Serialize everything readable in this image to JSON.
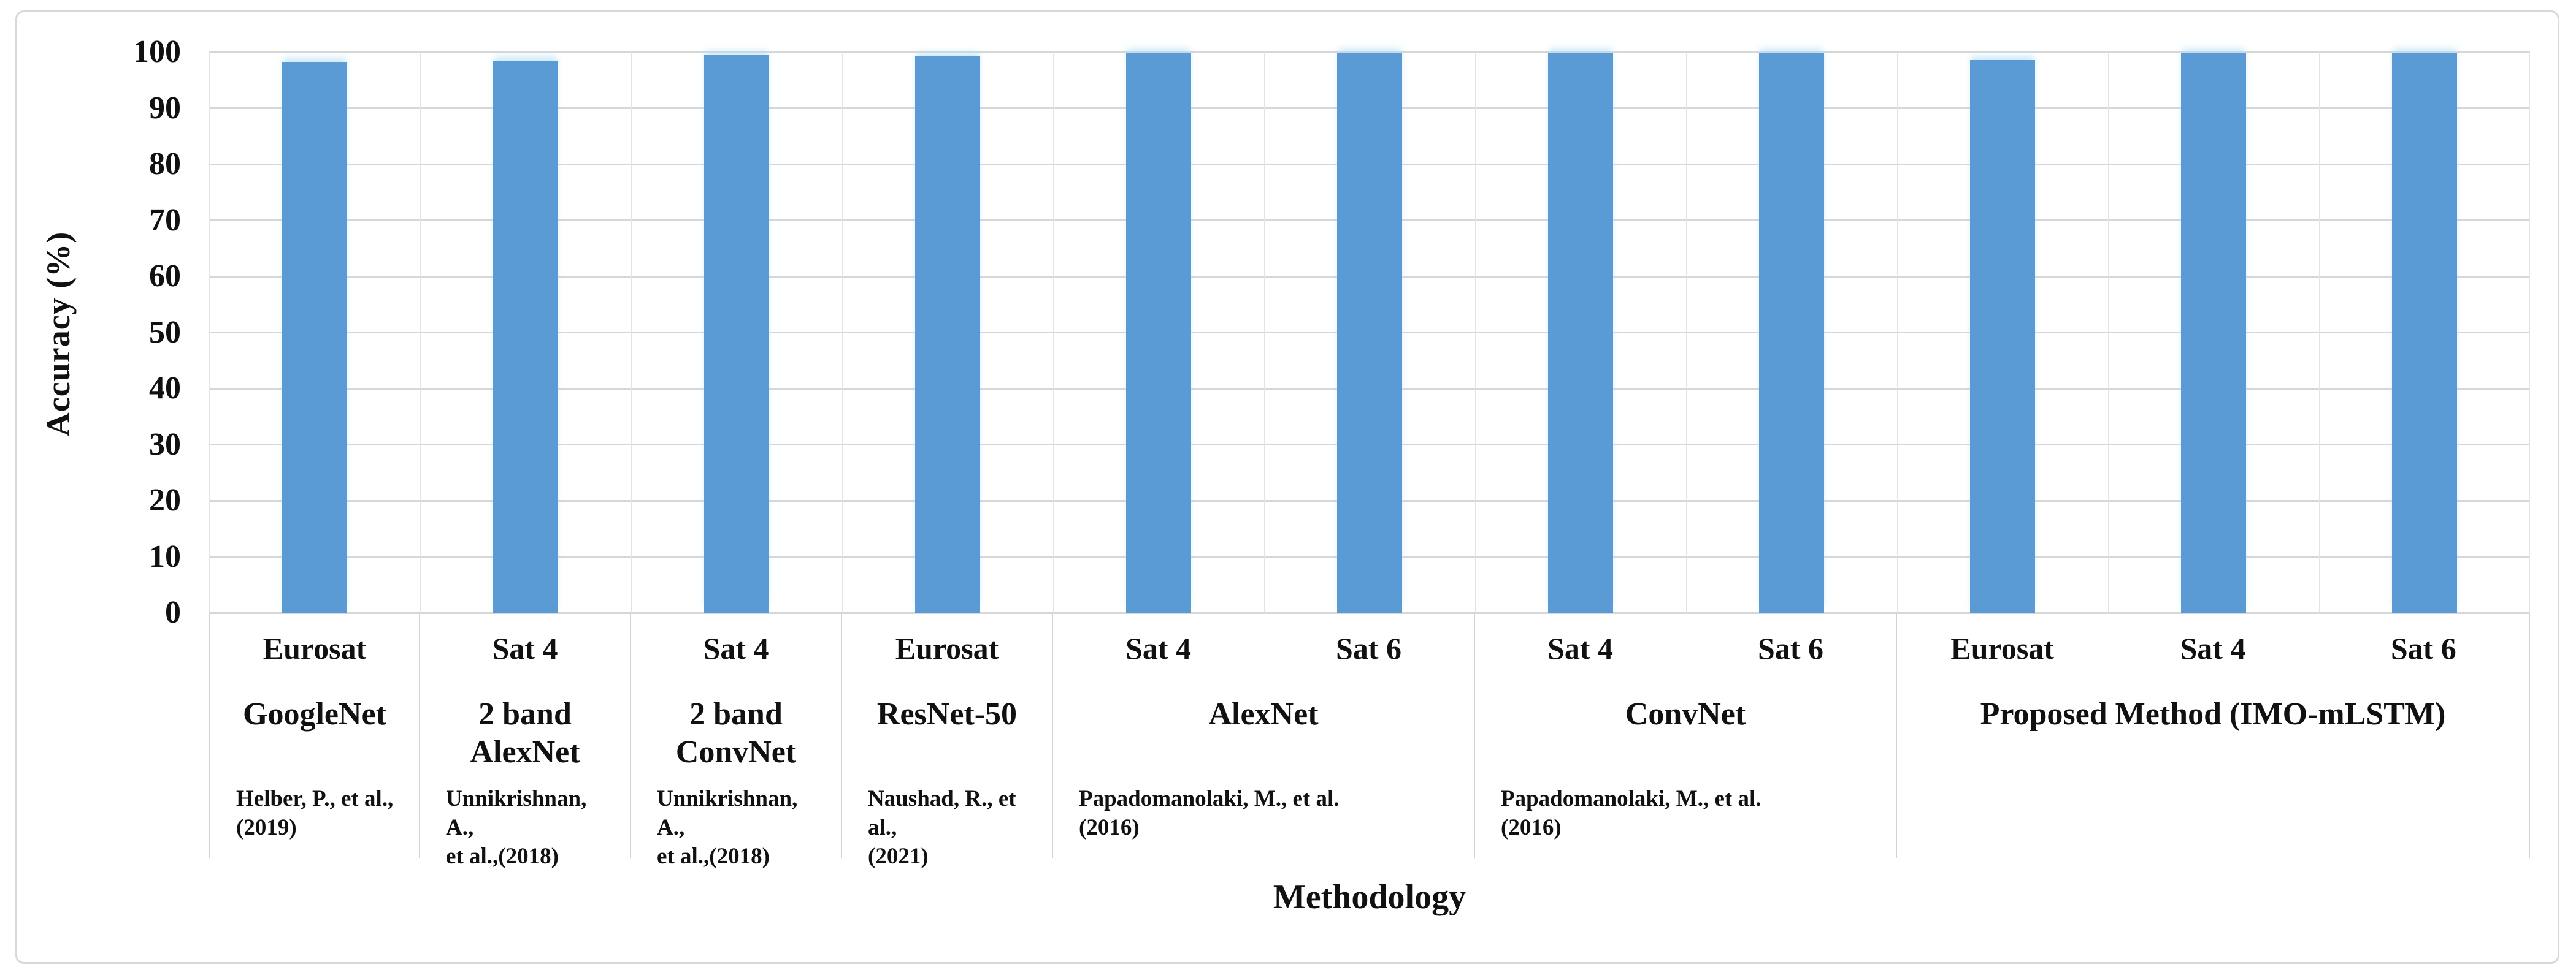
{
  "figure": {
    "y_axis_title": "Accuracy (%)",
    "x_axis_title": "Methodology"
  },
  "chart_data": {
    "type": "bar",
    "title": "",
    "xlabel": "Methodology",
    "ylabel": "Accuracy (%)",
    "ylim": [
      0,
      100
    ],
    "yticks": [
      0,
      10,
      20,
      30,
      40,
      50,
      60,
      70,
      80,
      90,
      100
    ],
    "grid": true,
    "legend_position": "none",
    "bar_color": "#5B9BD5",
    "gridline_color": "#d7d7d7",
    "categories": [
      "Eurosat",
      "Sat 4",
      "Sat 4",
      "Eurosat",
      "Sat 4",
      "Sat 6",
      "Sat 4",
      "Sat 6",
      "Eurosat",
      "Sat 4",
      "Sat 6"
    ],
    "values": [
      98.2,
      98.5,
      99.5,
      99.2,
      99.9,
      99.9,
      99.9,
      99.9,
      98.6,
      99.9,
      99.9
    ],
    "groups": [
      {
        "method": "GoogleNet",
        "method_lines": [
          "GoogleNet"
        ],
        "citation": "Helber, P.,  et al., (2019)",
        "citation_lines": [
          "Helber, P.,  et al.,",
          "(2019)"
        ],
        "bars": [
          {
            "dataset": "Eurosat",
            "value": 98.2
          }
        ]
      },
      {
        "method": "2 band AlexNet",
        "method_lines": [
          "2 band",
          "AlexNet"
        ],
        "citation": "Unnikrishnan, A., et al.,(2018)",
        "citation_lines": [
          "Unnikrishnan, A.,",
          "et al.,(2018)"
        ],
        "bars": [
          {
            "dataset": "Sat 4",
            "value": 98.5
          }
        ]
      },
      {
        "method": "2 band ConvNet",
        "method_lines": [
          "2 band",
          "ConvNet"
        ],
        "citation": "Unnikrishnan, A., et al.,(2018)",
        "citation_lines": [
          "Unnikrishnan, A.,",
          "et al.,(2018)"
        ],
        "bars": [
          {
            "dataset": "Sat 4",
            "value": 99.5
          }
        ]
      },
      {
        "method": "ResNet-50",
        "method_lines": [
          "ResNet-50"
        ],
        "citation": "Naushad, R., et al., (2021)",
        "citation_lines": [
          "Naushad, R., et al.,",
          "(2021)"
        ],
        "bars": [
          {
            "dataset": "Eurosat",
            "value": 99.2
          }
        ]
      },
      {
        "method": "AlexNet",
        "method_lines": [
          "AlexNet"
        ],
        "citation": "Papadomanolaki, M., et al. (2016)",
        "citation_lines": [
          "Papadomanolaki, M., et al.",
          "(2016)"
        ],
        "bars": [
          {
            "dataset": "Sat 4",
            "value": 99.9
          },
          {
            "dataset": "Sat 6",
            "value": 99.9
          }
        ]
      },
      {
        "method": "ConvNet",
        "method_lines": [
          "ConvNet"
        ],
        "citation": "Papadomanolaki, M., et al. (2016)",
        "citation_lines": [
          "Papadomanolaki, M., et al.",
          "(2016)"
        ],
        "bars": [
          {
            "dataset": "Sat 4",
            "value": 99.9
          },
          {
            "dataset": "Sat 6",
            "value": 99.9
          }
        ]
      },
      {
        "method": "Proposed Method (IMO-mLSTM)",
        "method_lines": [
          "Proposed Method (IMO-mLSTM)"
        ],
        "citation": "",
        "citation_lines": [],
        "bars": [
          {
            "dataset": "Eurosat",
            "value": 98.6
          },
          {
            "dataset": "Sat 4",
            "value": 99.9
          },
          {
            "dataset": "Sat 6",
            "value": 99.9
          }
        ]
      }
    ]
  }
}
